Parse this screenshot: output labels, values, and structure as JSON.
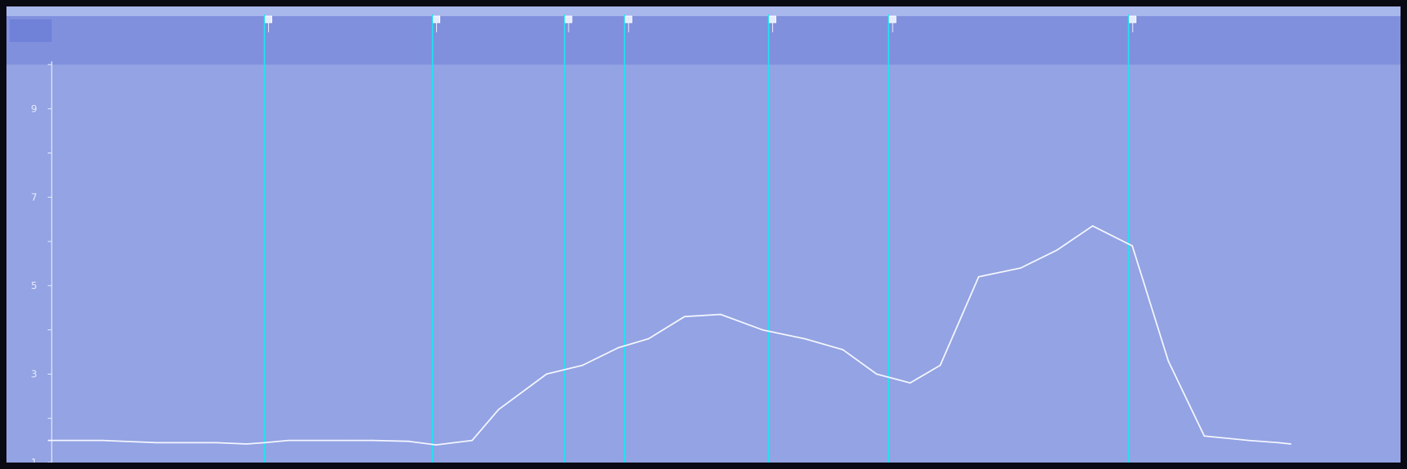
{
  "chart_data": {
    "type": "line",
    "title": "",
    "xlabel": "",
    "ylabel": "",
    "ylim": [
      1,
      10
    ],
    "y_ticks": [
      1,
      3,
      5,
      7,
      9
    ],
    "y_tick_labels": [
      "1",
      "3",
      "5",
      "7",
      "9"
    ],
    "grid": false,
    "x_range": [
      0,
      1.0
    ],
    "series": [
      {
        "values": [
          {
            "x": 0.0,
            "y": 1.5
          },
          {
            "x": 0.045,
            "y": 1.5
          },
          {
            "x": 0.09,
            "y": 1.45
          },
          {
            "x": 0.14,
            "y": 1.45
          },
          {
            "x": 0.165,
            "y": 1.42
          },
          {
            "x": 0.18,
            "y": 1.45
          },
          {
            "x": 0.2,
            "y": 1.5
          },
          {
            "x": 0.25,
            "y": 1.5
          },
          {
            "x": 0.27,
            "y": 1.5
          },
          {
            "x": 0.3,
            "y": 1.48
          },
          {
            "x": 0.323,
            "y": 1.4
          },
          {
            "x": 0.353,
            "y": 1.5
          },
          {
            "x": 0.375,
            "y": 2.2
          },
          {
            "x": 0.395,
            "y": 2.6
          },
          {
            "x": 0.415,
            "y": 3.0
          },
          {
            "x": 0.445,
            "y": 3.2
          },
          {
            "x": 0.475,
            "y": 3.6
          },
          {
            "x": 0.5,
            "y": 3.8
          },
          {
            "x": 0.53,
            "y": 4.3
          },
          {
            "x": 0.56,
            "y": 4.35
          },
          {
            "x": 0.595,
            "y": 4.0
          },
          {
            "x": 0.63,
            "y": 3.8
          },
          {
            "x": 0.662,
            "y": 3.55
          },
          {
            "x": 0.69,
            "y": 3.0
          },
          {
            "x": 0.718,
            "y": 2.8
          },
          {
            "x": 0.743,
            "y": 3.2
          },
          {
            "x": 0.775,
            "y": 5.2
          },
          {
            "x": 0.81,
            "y": 5.4
          },
          {
            "x": 0.84,
            "y": 5.8
          },
          {
            "x": 0.87,
            "y": 6.35
          },
          {
            "x": 0.903,
            "y": 5.9
          },
          {
            "x": 0.933,
            "y": 3.3
          },
          {
            "x": 0.963,
            "y": 1.6
          },
          {
            "x": 1.0,
            "y": 1.5
          },
          {
            "x": 1.025,
            "y": 1.45
          },
          {
            "x": 1.035,
            "y": 1.42
          }
        ]
      }
    ],
    "markers": [
      {
        "x": 0.18
      },
      {
        "x": 0.32
      },
      {
        "x": 0.43
      },
      {
        "x": 0.48
      },
      {
        "x": 0.6
      },
      {
        "x": 0.7
      },
      {
        "x": 0.9
      }
    ],
    "colors": {
      "outer_border": "#00e8f0",
      "plot_background": "#93a3e3",
      "header_band": "#8190dd",
      "header_topline": "#a8b7ec",
      "corner_box": "#7081d8",
      "line": "#f4f6ff",
      "marker_line": "#19e6f4",
      "axis": "#e8ecff"
    }
  }
}
